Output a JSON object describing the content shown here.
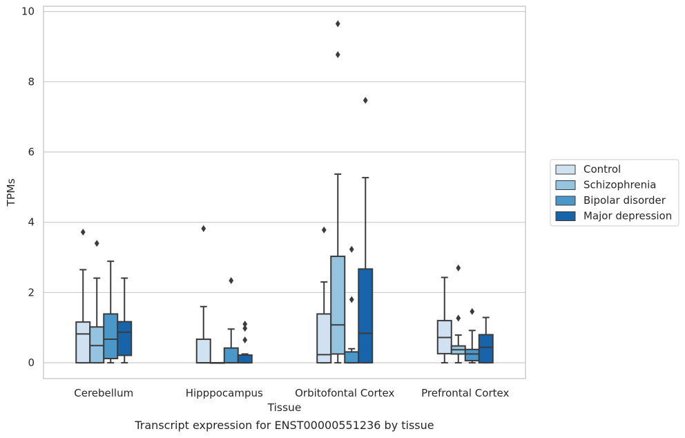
{
  "caption": "Transcript expression for ENST00000551236 by tissue",
  "chart_data": {
    "type": "box",
    "xlabel": "Tissue",
    "ylabel": "TPMs",
    "ylim": [
      -0.45,
      10.15
    ],
    "yticks": [
      0,
      2,
      4,
      6,
      8,
      10
    ],
    "grid": "horizontal",
    "legend_position": "right",
    "categories": [
      "Cerebellum",
      "Hipppocampus",
      "Orbitofontal Cortex",
      "Prefrontal Cortex"
    ],
    "series": [
      {
        "name": "Control",
        "color": "#d0e1f2",
        "boxes": [
          {
            "whislo": 0,
            "q1": 0,
            "med": 0.82,
            "q3": 1.16,
            "whishi": 2.65,
            "fliers": [
              3.72
            ]
          },
          {
            "whislo": 0,
            "q1": 0,
            "med": 0,
            "q3": 0.67,
            "whishi": 1.6,
            "fliers": [
              3.82
            ]
          },
          {
            "whislo": 0,
            "q1": 0,
            "med": 0.23,
            "q3": 1.39,
            "whishi": 2.3,
            "fliers": [
              3.78
            ]
          },
          {
            "whislo": 0,
            "q1": 0.26,
            "med": 0.72,
            "q3": 1.2,
            "whishi": 2.43,
            "fliers": []
          }
        ]
      },
      {
        "name": "Schizophrenia",
        "color": "#94c4df",
        "boxes": [
          {
            "whislo": 0,
            "q1": 0,
            "med": 0.49,
            "q3": 1.02,
            "whishi": 2.41,
            "fliers": [
              3.4
            ]
          },
          {
            "whislo": 0,
            "q1": 0,
            "med": 0,
            "q3": 0,
            "whishi": 0,
            "fliers": []
          },
          {
            "whislo": 0,
            "q1": 0.25,
            "med": 1.08,
            "q3": 3.03,
            "whishi": 5.37,
            "fliers": [
              8.77,
              9.65
            ]
          },
          {
            "whislo": 0,
            "q1": 0.25,
            "med": 0.37,
            "q3": 0.48,
            "whishi": 0.79,
            "fliers": [
              1.27,
              2.7
            ]
          }
        ]
      },
      {
        "name": "Bipolar disorder",
        "color": "#4a98c9",
        "boxes": [
          {
            "whislo": 0,
            "q1": 0.12,
            "med": 0.67,
            "q3": 1.39,
            "whishi": 2.89,
            "fliers": []
          },
          {
            "whislo": 0,
            "q1": 0,
            "med": 0,
            "q3": 0.42,
            "whishi": 0.96,
            "fliers": [
              2.34
            ]
          },
          {
            "whislo": 0,
            "q1": 0,
            "med": 0,
            "q3": 0.31,
            "whishi": 0.4,
            "fliers": [
              1.8,
              3.23
            ]
          },
          {
            "whislo": 0,
            "q1": 0.06,
            "med": 0.25,
            "q3": 0.38,
            "whishi": 0.92,
            "fliers": [
              1.46
            ]
          }
        ]
      },
      {
        "name": "Major depression",
        "color": "#1764ab",
        "boxes": [
          {
            "whislo": 0,
            "q1": 0.21,
            "med": 0.87,
            "q3": 1.17,
            "whishi": 2.41,
            "fliers": []
          },
          {
            "whislo": 0,
            "q1": 0,
            "med": 0,
            "q3": 0.22,
            "whishi": 0.25,
            "fliers": [
              0.65,
              0.98,
              1.1
            ]
          },
          {
            "whislo": 0,
            "q1": 0,
            "med": 0.84,
            "q3": 2.67,
            "whishi": 5.27,
            "fliers": [
              7.47
            ]
          },
          {
            "whislo": 0,
            "q1": 0,
            "med": 0.44,
            "q3": 0.8,
            "whishi": 1.29,
            "fliers": []
          }
        ]
      }
    ]
  }
}
